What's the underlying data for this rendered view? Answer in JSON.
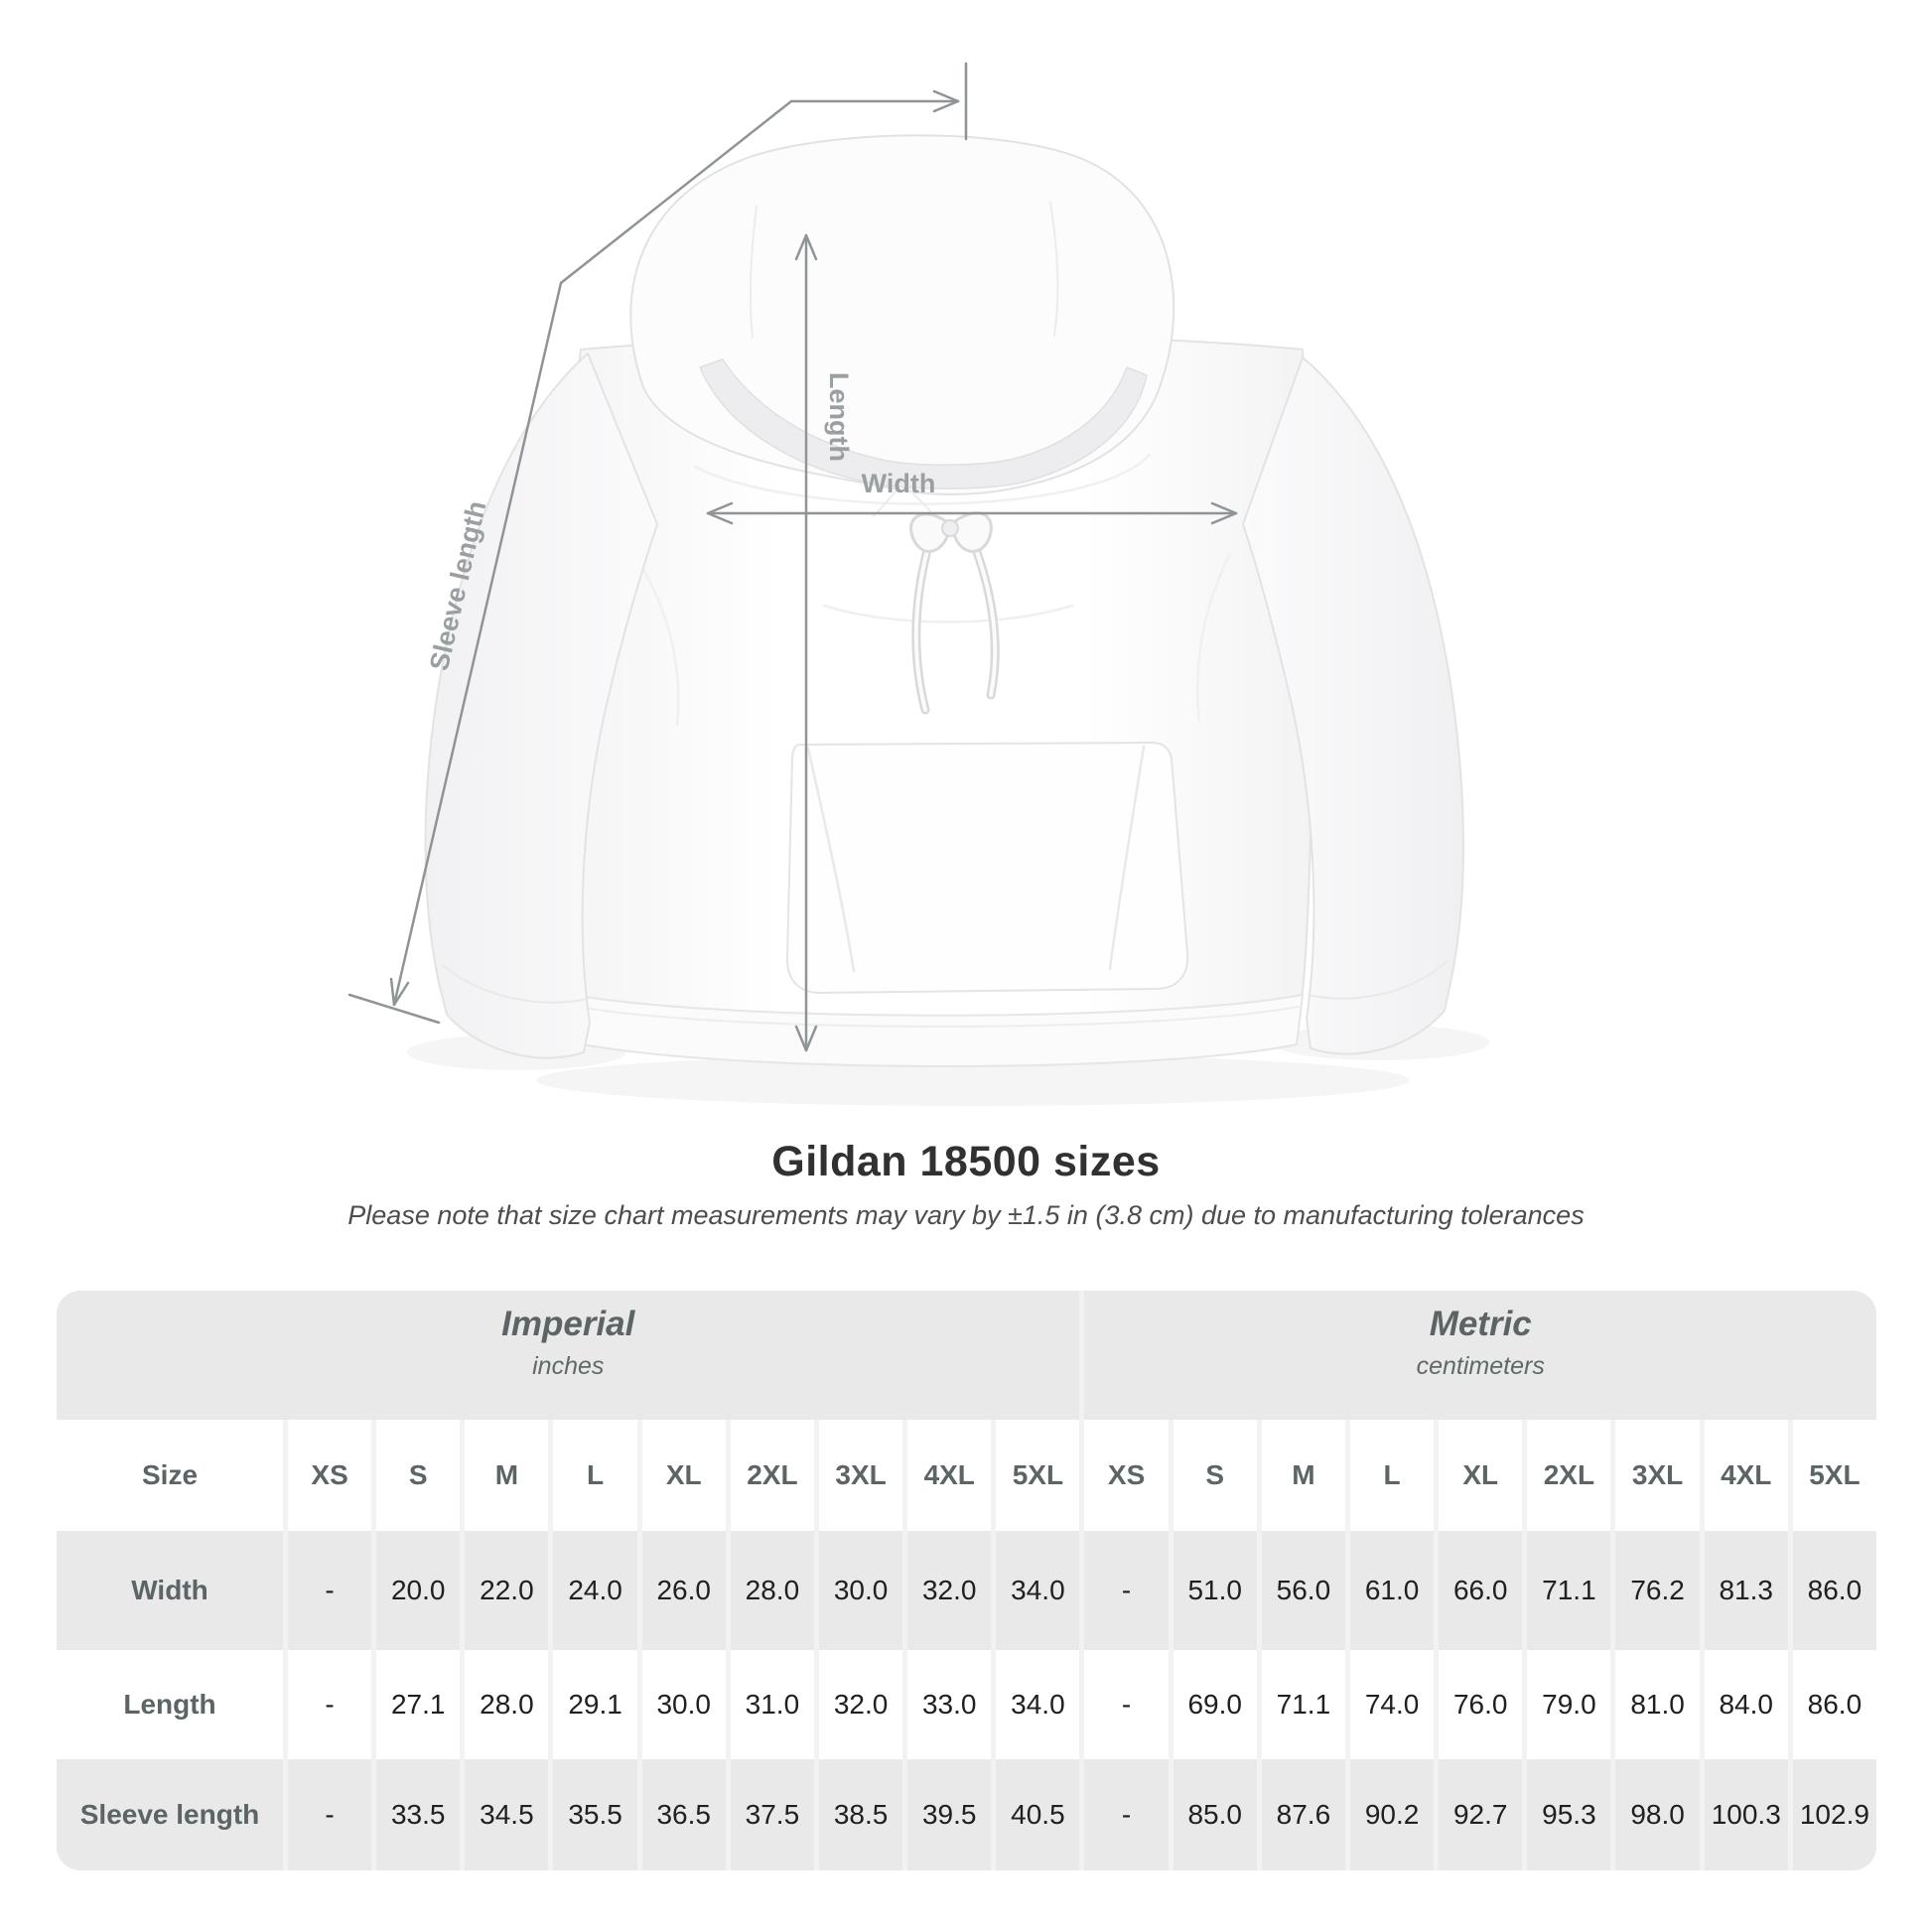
{
  "diagram": {
    "width_label": "Width",
    "length_label": "Length",
    "sleeve_label": "Sleeve length"
  },
  "header": {
    "title": "Gildan 18500 sizes",
    "subtitle": "Please note that size chart measurements may vary by ±1.5 in (3.8 cm) due to manufacturing tolerances"
  },
  "table": {
    "size_header": "Size",
    "groups": [
      {
        "label": "Imperial",
        "unit": "inches"
      },
      {
        "label": "Metric",
        "unit": "centimeters"
      }
    ],
    "sizes": [
      "XS",
      "S",
      "M",
      "L",
      "XL",
      "2XL",
      "3XL",
      "4XL",
      "5XL"
    ],
    "rows": [
      {
        "label": "Width",
        "imperial": [
          "-",
          "20.0",
          "22.0",
          "24.0",
          "26.0",
          "28.0",
          "30.0",
          "32.0",
          "34.0"
        ],
        "metric": [
          "-",
          "51.0",
          "56.0",
          "61.0",
          "66.0",
          "71.1",
          "76.2",
          "81.3",
          "86.0"
        ]
      },
      {
        "label": "Length",
        "imperial": [
          "-",
          "27.1",
          "28.0",
          "29.1",
          "30.0",
          "31.0",
          "32.0",
          "33.0",
          "34.0"
        ],
        "metric": [
          "-",
          "69.0",
          "71.1",
          "74.0",
          "76.0",
          "79.0",
          "81.0",
          "84.0",
          "86.0"
        ]
      },
      {
        "label": "Sleeve length",
        "imperial": [
          "-",
          "33.5",
          "34.5",
          "35.5",
          "36.5",
          "37.5",
          "38.5",
          "39.5",
          "40.5"
        ],
        "metric": [
          "-",
          "85.0",
          "87.6",
          "90.2",
          "92.7",
          "95.3",
          "98.0",
          "100.3",
          "102.9"
        ]
      }
    ]
  },
  "colors": {
    "row_gray": "#e9e9e9",
    "separator": "#f2f2f2",
    "annotation_line": "#8f9496",
    "annotation_label": "#9aa0a2",
    "heading_text": "#5c6466",
    "value_text": "#202020"
  }
}
